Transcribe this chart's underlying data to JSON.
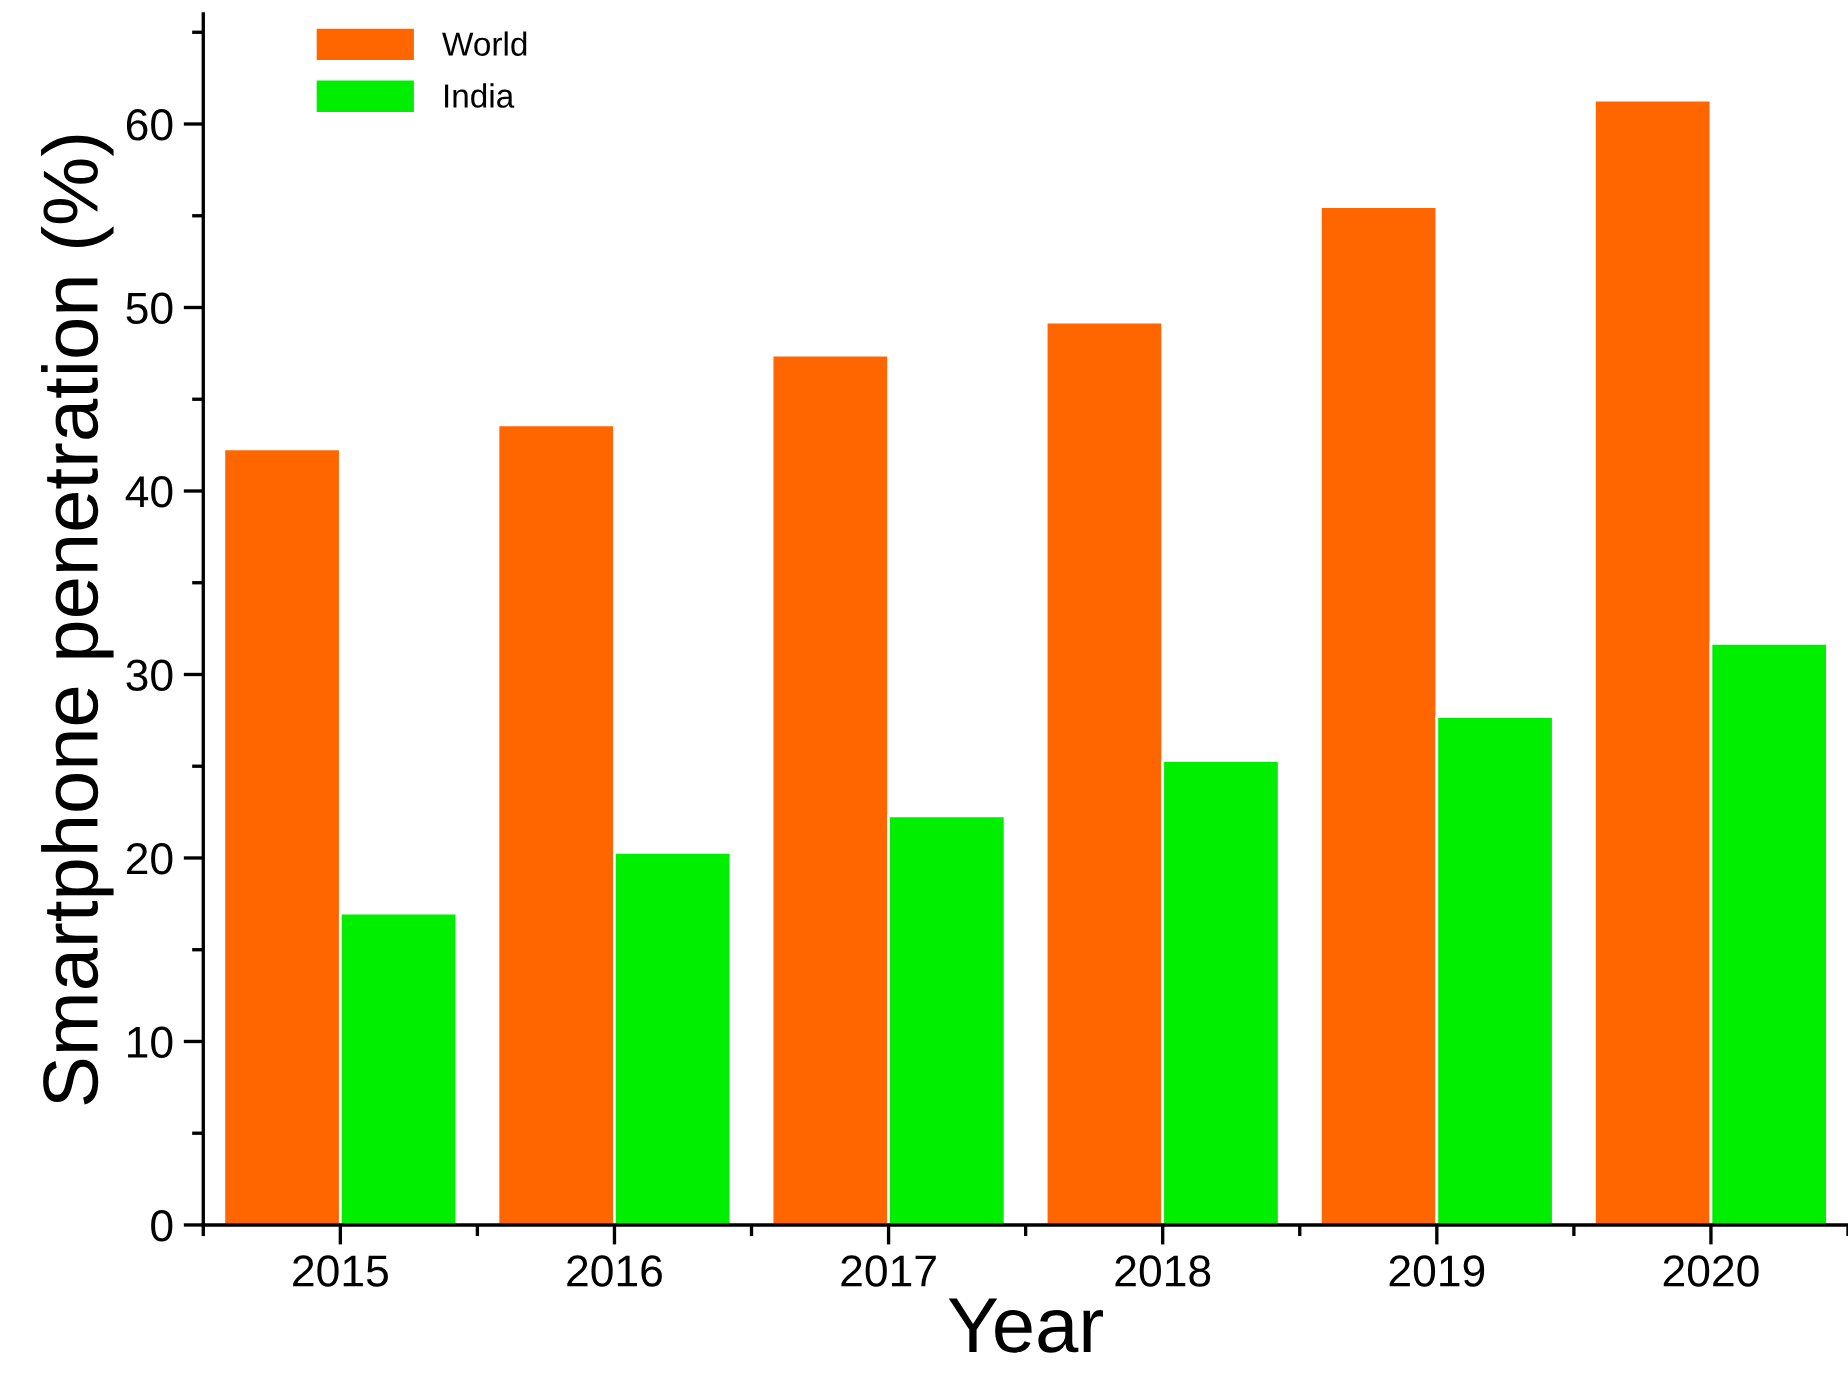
{
  "chart_data": {
    "type": "bar",
    "xlabel": "Year",
    "ylabel": "Smartphone penetration (%)",
    "categories": [
      "2015",
      "2016",
      "2017",
      "2018",
      "2019",
      "2020"
    ],
    "series": [
      {
        "name": "World",
        "color": "#ff6600",
        "values": [
          42.3,
          43.6,
          47.4,
          49.2,
          55.5,
          61.3
        ]
      },
      {
        "name": "India",
        "color": "#00ee00",
        "values": [
          17.0,
          20.3,
          22.3,
          25.3,
          27.7,
          31.7
        ]
      }
    ],
    "ylim": [
      0,
      66
    ],
    "yticks": [
      0,
      10,
      20,
      30,
      40,
      50,
      60
    ],
    "grid": false,
    "legend": "top left"
  }
}
